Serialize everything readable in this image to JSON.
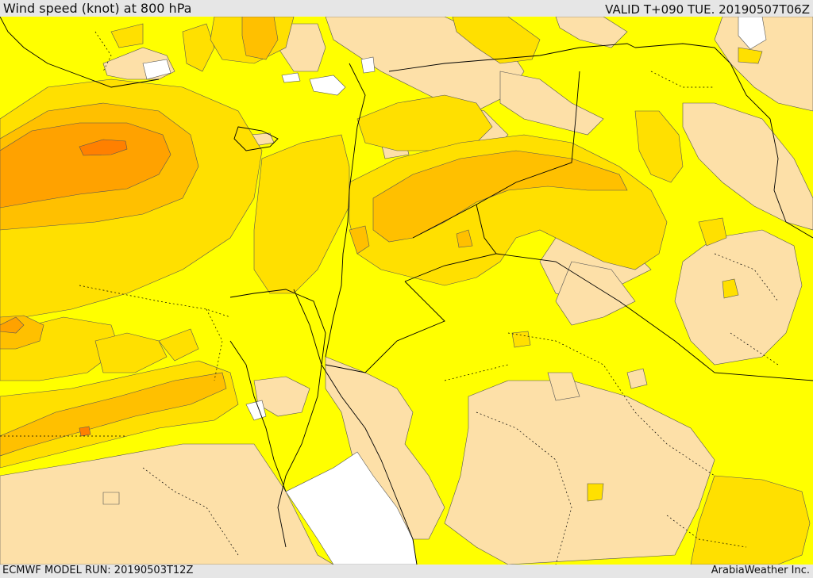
{
  "header": {
    "title": "Wind speed (knot) at 800 hPa",
    "valid_time": "VALID T+090 TUE. 20190507T06Z"
  },
  "footer": {
    "model_run": "ECMWF MODEL RUN: 20190503T12Z",
    "credit": "ArabiaWeather Inc."
  },
  "colors": {
    "very_light": "#ffffff",
    "light": "#fde0a8",
    "moderate": "#ffff00",
    "fresh": "#ffe000",
    "strong": "#ffc000",
    "very_strong": "#ffa200",
    "extreme": "#ff8000",
    "coastline": "#000000"
  }
}
